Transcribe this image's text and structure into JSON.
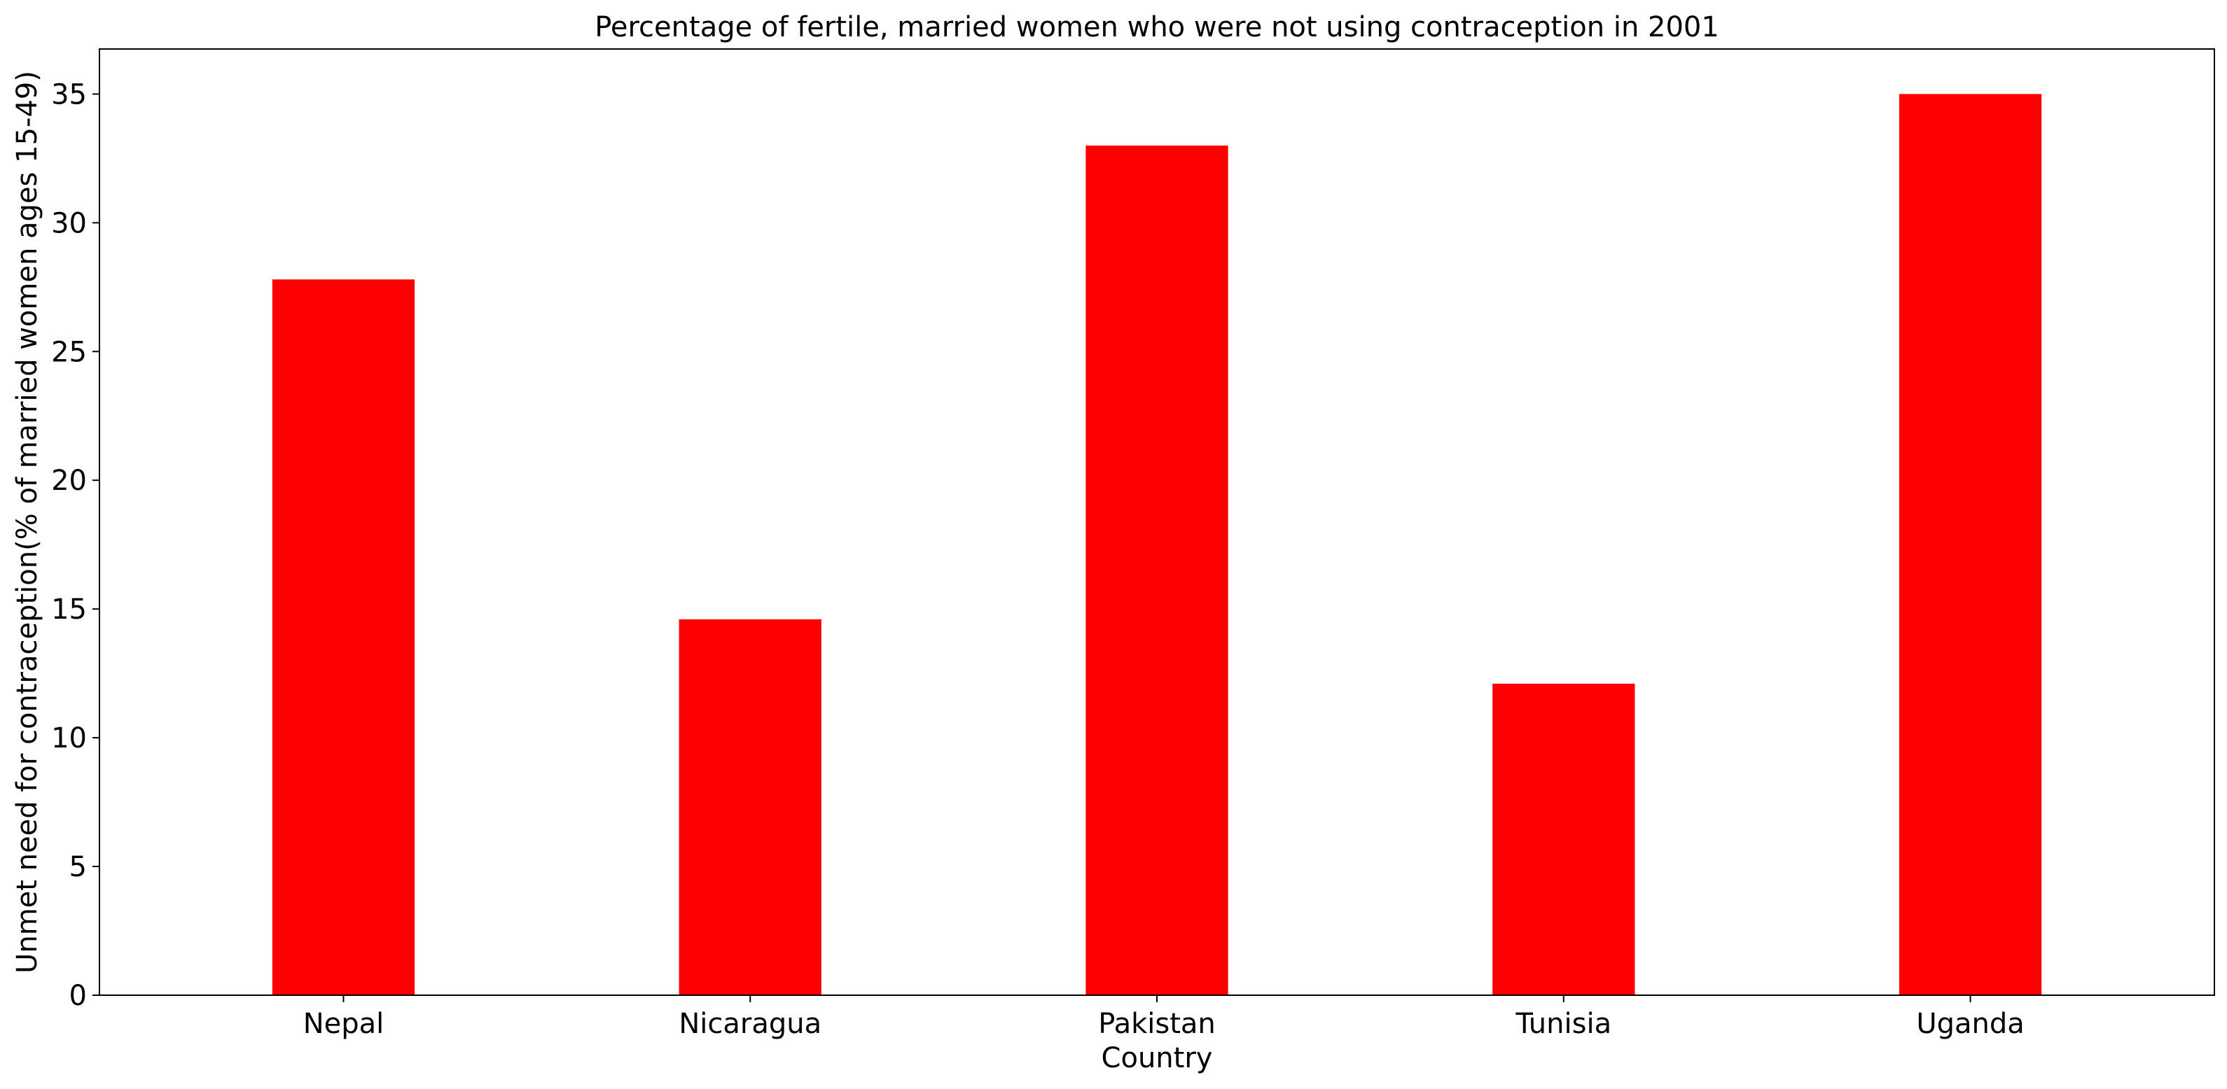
{
  "chart_data": {
    "type": "bar",
    "title": "Percentage of fertile, married women who were not using contraception in 2001",
    "xlabel": "Country",
    "ylabel": "Unmet need for contraception(% of married women ages 15-49)",
    "categories": [
      "Nepal",
      "Nicaragua",
      "Pakistan",
      "Tunisia",
      "Uganda"
    ],
    "values": [
      27.8,
      14.6,
      33.0,
      12.1,
      35.0
    ],
    "ylim": [
      0,
      36.75
    ],
    "yticks": [
      0,
      5,
      10,
      15,
      20,
      25,
      30,
      35
    ],
    "grid": false,
    "bar_color": "#ff0000"
  }
}
